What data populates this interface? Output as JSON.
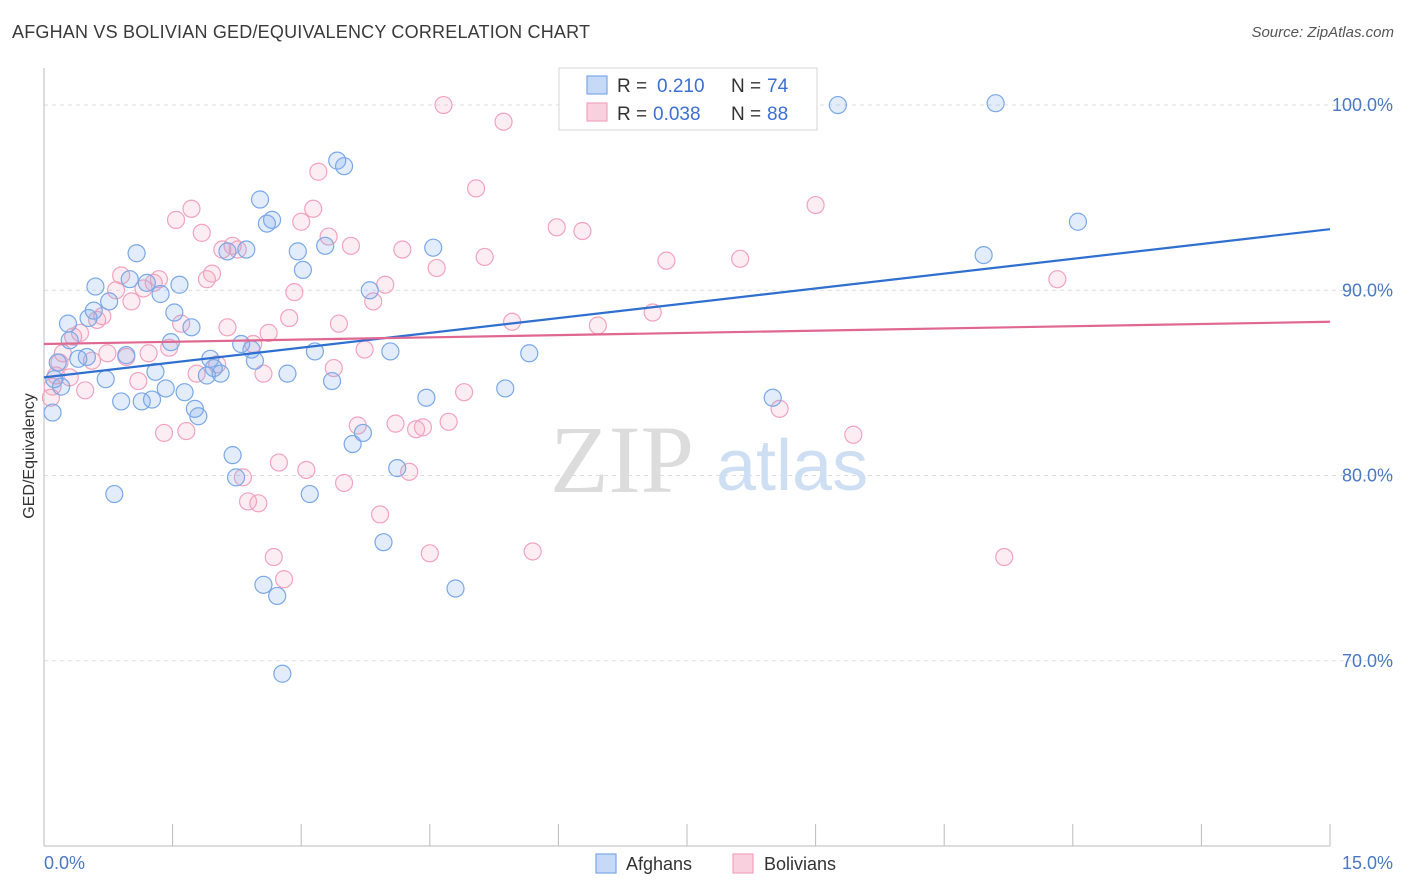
{
  "title": "AFGHAN VS BOLIVIAN GED/EQUIVALENCY CORRELATION CHART",
  "source": "Source: ZipAtlas.com",
  "watermark": {
    "zip": "ZIP",
    "atlas": "atlas"
  },
  "colors": {
    "afghans": "#7aa8e8",
    "afghans_line": "#2f6fd0",
    "bolivians": "#f2a3bd",
    "bolivians_line": "#e0678f",
    "tick": "#4a78c2",
    "grid": "#dddddd"
  },
  "legend": {
    "rows": [
      {
        "r_label": "R =",
        "r_value": "0.210",
        "n_label": "N =",
        "n_value": "74"
      },
      {
        "r_label": "R =",
        "r_value": "0.038",
        "n_label": "N =",
        "n_value": "88"
      }
    ]
  },
  "bottom_legend": [
    "Afghans",
    "Bolivians"
  ],
  "chart_data": {
    "type": "scatter",
    "title": "AFGHAN VS BOLIVIAN GED/EQUIVALENCY CORRELATION CHART",
    "xlabel": "",
    "ylabel": "GED/Equivalency",
    "xlim": [
      0,
      15
    ],
    "ylim": [
      60,
      102
    ],
    "x_tick_labels": [
      "0.0%",
      "15.0%"
    ],
    "y_ticks": [
      70,
      80,
      90,
      100
    ],
    "y_tick_labels": [
      "70.0%",
      "80.0%",
      "90.0%",
      "100.0%"
    ],
    "grid": true,
    "legend_position": "top-center",
    "series": [
      {
        "name": "Afghans",
        "r": 0.21,
        "n": 74,
        "trend": [
          [
            0.0,
            85.3
          ],
          [
            15.0,
            93.3
          ]
        ],
        "points": [
          [
            0.1,
            83.4
          ],
          [
            0.12,
            85.2
          ],
          [
            0.16,
            86.1
          ],
          [
            0.2,
            84.8
          ],
          [
            0.28,
            88.2
          ],
          [
            0.3,
            87.3
          ],
          [
            0.4,
            86.3
          ],
          [
            0.5,
            86.4
          ],
          [
            0.52,
            88.5
          ],
          [
            0.58,
            88.9
          ],
          [
            0.6,
            90.2
          ],
          [
            0.72,
            85.2
          ],
          [
            0.76,
            89.4
          ],
          [
            0.82,
            79.0
          ],
          [
            0.9,
            84.0
          ],
          [
            0.96,
            86.5
          ],
          [
            1.0,
            90.6
          ],
          [
            1.08,
            92.0
          ],
          [
            1.14,
            84.0
          ],
          [
            1.2,
            90.4
          ],
          [
            1.26,
            84.1
          ],
          [
            1.3,
            85.6
          ],
          [
            1.36,
            89.8
          ],
          [
            1.42,
            84.7
          ],
          [
            1.48,
            87.2
          ],
          [
            1.52,
            88.8
          ],
          [
            1.58,
            90.3
          ],
          [
            1.64,
            84.5
          ],
          [
            1.72,
            88.0
          ],
          [
            1.76,
            83.6
          ],
          [
            1.8,
            83.2
          ],
          [
            1.9,
            85.4
          ],
          [
            1.94,
            86.3
          ],
          [
            1.98,
            85.8
          ],
          [
            2.06,
            85.5
          ],
          [
            2.14,
            92.1
          ],
          [
            2.2,
            81.1
          ],
          [
            2.24,
            79.9
          ],
          [
            2.3,
            87.1
          ],
          [
            2.36,
            92.2
          ],
          [
            2.42,
            86.8
          ],
          [
            2.46,
            86.2
          ],
          [
            2.52,
            94.9
          ],
          [
            2.56,
            74.1
          ],
          [
            2.6,
            93.6
          ],
          [
            2.66,
            93.8
          ],
          [
            2.72,
            73.5
          ],
          [
            2.78,
            69.3
          ],
          [
            2.84,
            85.5
          ],
          [
            2.96,
            92.1
          ],
          [
            3.02,
            91.1
          ],
          [
            3.1,
            79.0
          ],
          [
            3.16,
            86.7
          ],
          [
            3.28,
            92.4
          ],
          [
            3.36,
            85.1
          ],
          [
            3.42,
            97.0
          ],
          [
            3.5,
            96.7
          ],
          [
            3.6,
            81.7
          ],
          [
            3.72,
            82.3
          ],
          [
            3.8,
            90.0
          ],
          [
            3.96,
            76.4
          ],
          [
            4.04,
            86.7
          ],
          [
            4.12,
            80.4
          ],
          [
            4.46,
            84.2
          ],
          [
            4.54,
            92.3
          ],
          [
            4.8,
            73.9
          ],
          [
            5.38,
            84.7
          ],
          [
            5.66,
            86.6
          ],
          [
            6.66,
            100.2
          ],
          [
            8.5,
            84.2
          ],
          [
            9.26,
            100.0
          ],
          [
            10.96,
            91.9
          ],
          [
            11.1,
            100.1
          ],
          [
            12.06,
            93.7
          ]
        ]
      },
      {
        "name": "Bolivians",
        "r": 0.038,
        "n": 88,
        "trend": [
          [
            0.0,
            87.1
          ],
          [
            15.0,
            88.3
          ]
        ],
        "points": [
          [
            0.08,
            84.2
          ],
          [
            0.1,
            84.8
          ],
          [
            0.14,
            85.4
          ],
          [
            0.18,
            86.1
          ],
          [
            0.22,
            86.6
          ],
          [
            0.3,
            85.3
          ],
          [
            0.34,
            87.5
          ],
          [
            0.42,
            87.7
          ],
          [
            0.48,
            84.6
          ],
          [
            0.56,
            86.2
          ],
          [
            0.62,
            88.4
          ],
          [
            0.68,
            88.6
          ],
          [
            0.74,
            86.6
          ],
          [
            0.84,
            90.0
          ],
          [
            0.9,
            90.8
          ],
          [
            0.96,
            86.4
          ],
          [
            1.02,
            89.4
          ],
          [
            1.1,
            85.1
          ],
          [
            1.16,
            90.1
          ],
          [
            1.22,
            86.6
          ],
          [
            1.28,
            90.4
          ],
          [
            1.34,
            90.6
          ],
          [
            1.4,
            82.3
          ],
          [
            1.46,
            86.9
          ],
          [
            1.54,
            93.8
          ],
          [
            1.6,
            88.2
          ],
          [
            1.66,
            82.4
          ],
          [
            1.72,
            94.4
          ],
          [
            1.78,
            85.5
          ],
          [
            1.84,
            93.1
          ],
          [
            1.9,
            90.6
          ],
          [
            1.96,
            90.9
          ],
          [
            2.02,
            86.0
          ],
          [
            2.08,
            92.2
          ],
          [
            2.14,
            88.0
          ],
          [
            2.2,
            92.4
          ],
          [
            2.26,
            92.2
          ],
          [
            2.32,
            79.9
          ],
          [
            2.38,
            78.6
          ],
          [
            2.44,
            87.1
          ],
          [
            2.5,
            78.5
          ],
          [
            2.56,
            85.5
          ],
          [
            2.62,
            87.7
          ],
          [
            2.68,
            75.6
          ],
          [
            2.74,
            80.7
          ],
          [
            2.8,
            74.4
          ],
          [
            2.86,
            88.5
          ],
          [
            2.92,
            89.9
          ],
          [
            3.0,
            93.7
          ],
          [
            3.06,
            80.3
          ],
          [
            3.14,
            94.4
          ],
          [
            3.2,
            96.4
          ],
          [
            3.32,
            92.9
          ],
          [
            3.38,
            85.8
          ],
          [
            3.44,
            88.2
          ],
          [
            3.5,
            79.6
          ],
          [
            3.58,
            92.4
          ],
          [
            3.66,
            82.7
          ],
          [
            3.74,
            86.8
          ],
          [
            3.84,
            89.4
          ],
          [
            3.92,
            77.9
          ],
          [
            3.98,
            90.3
          ],
          [
            4.1,
            82.8
          ],
          [
            4.18,
            92.2
          ],
          [
            4.26,
            80.2
          ],
          [
            4.34,
            82.5
          ],
          [
            4.42,
            82.6
          ],
          [
            4.5,
            75.8
          ],
          [
            4.58,
            91.2
          ],
          [
            4.66,
            100.0
          ],
          [
            4.72,
            82.9
          ],
          [
            4.9,
            84.5
          ],
          [
            5.04,
            95.5
          ],
          [
            5.14,
            91.8
          ],
          [
            5.36,
            99.1
          ],
          [
            5.46,
            88.3
          ],
          [
            5.7,
            75.9
          ],
          [
            5.98,
            93.4
          ],
          [
            6.28,
            93.2
          ],
          [
            6.46,
            88.1
          ],
          [
            7.1,
            88.8
          ],
          [
            7.26,
            91.6
          ],
          [
            8.12,
            91.7
          ],
          [
            8.58,
            83.6
          ],
          [
            9.0,
            94.6
          ],
          [
            9.44,
            82.2
          ],
          [
            11.2,
            75.6
          ],
          [
            11.82,
            90.6
          ]
        ]
      }
    ]
  }
}
